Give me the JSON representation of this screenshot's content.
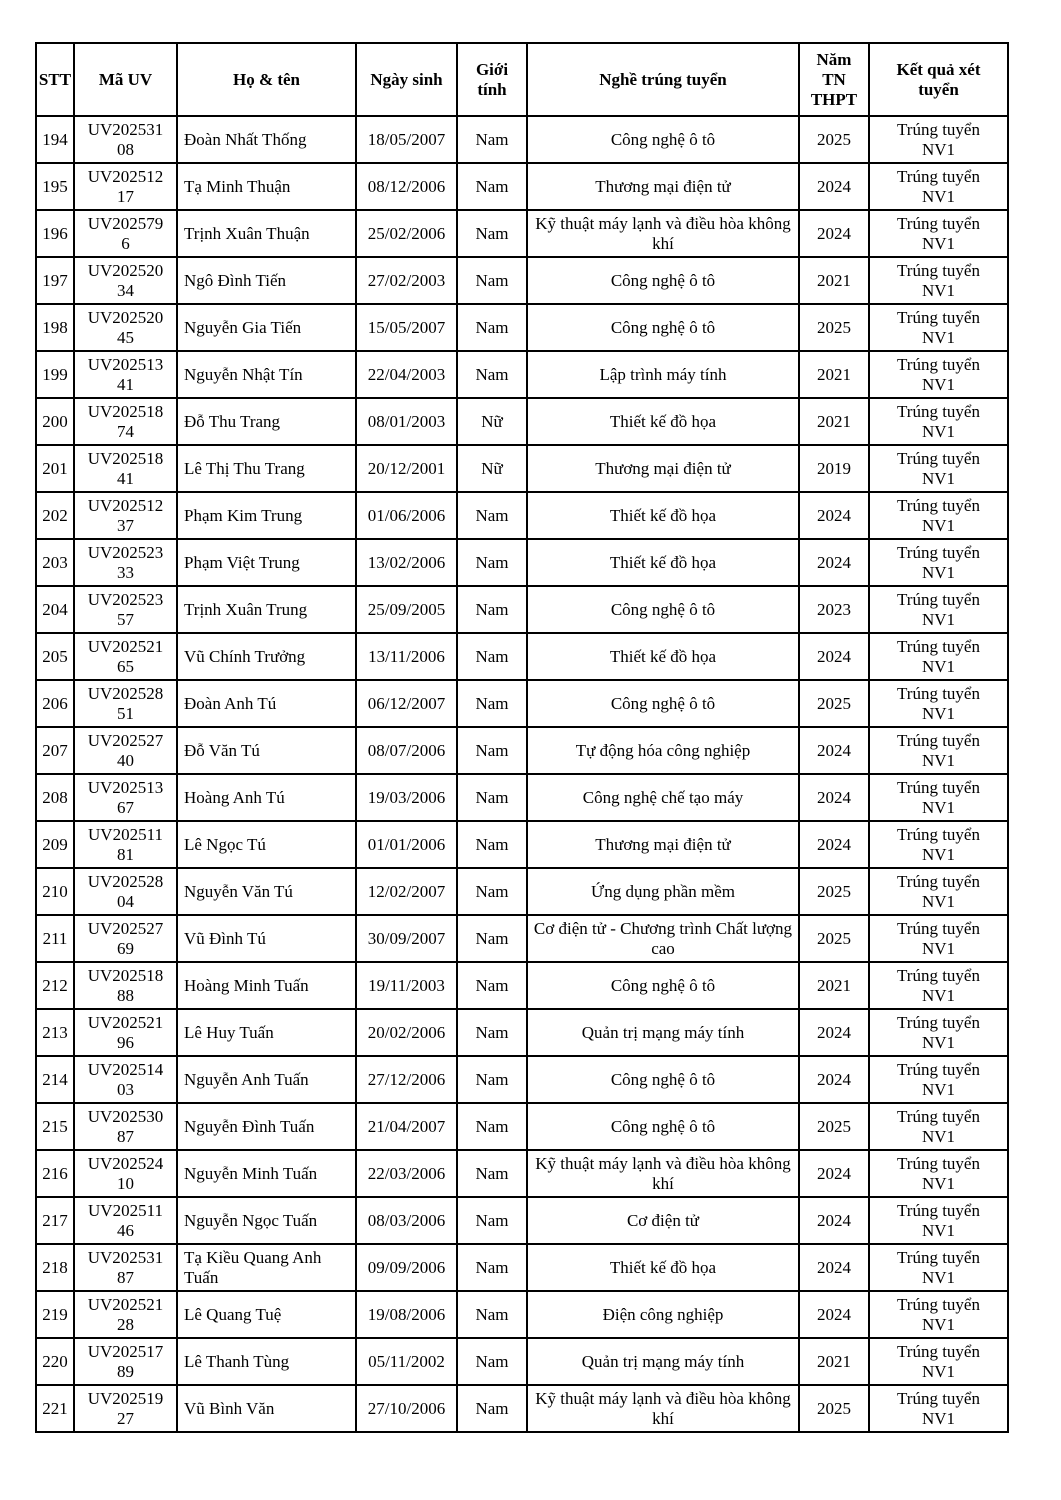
{
  "table": {
    "columns": [
      {
        "key": "stt",
        "label": "STT"
      },
      {
        "key": "ma_uv",
        "label": "Mã UV"
      },
      {
        "key": "ho_ten",
        "label": "Họ & tên"
      },
      {
        "key": "ngay_sinh",
        "label": "Ngày sinh"
      },
      {
        "key": "gioi_tinh",
        "label": "Giới tính"
      },
      {
        "key": "nghe",
        "label": "Nghề trúng tuyển"
      },
      {
        "key": "nam_tn",
        "label": "Năm TN THPT"
      },
      {
        "key": "ket_qua",
        "label": "Kết quả xét tuyển"
      }
    ],
    "rows": [
      [
        "194",
        "UV20253108",
        "Đoàn Nhất Thống",
        "18/05/2007",
        "Nam",
        "Công nghệ ô tô",
        "2025",
        "Trúng tuyển NV1"
      ],
      [
        "195",
        "UV20251217",
        "Tạ Minh Thuận",
        "08/12/2006",
        "Nam",
        "Thương mại điện tử",
        "2024",
        "Trúng tuyển NV1"
      ],
      [
        "196",
        "UV2025796",
        "Trịnh Xuân Thuận",
        "25/02/2006",
        "Nam",
        "Kỹ thuật máy lạnh và điều hòa không khí",
        "2024",
        "Trúng tuyển NV1"
      ],
      [
        "197",
        "UV20252034",
        "Ngô Đình Tiến",
        "27/02/2003",
        "Nam",
        "Công nghệ ô tô",
        "2021",
        "Trúng tuyển NV1"
      ],
      [
        "198",
        "UV20252045",
        "Nguyễn Gia Tiến",
        "15/05/2007",
        "Nam",
        "Công nghệ ô tô",
        "2025",
        "Trúng tuyển NV1"
      ],
      [
        "199",
        "UV20251341",
        "Nguyễn Nhật Tín",
        "22/04/2003",
        "Nam",
        "Lập trình máy tính",
        "2021",
        "Trúng tuyển NV1"
      ],
      [
        "200",
        "UV20251874",
        "Đỗ Thu Trang",
        "08/01/2003",
        "Nữ",
        "Thiết kế đồ họa",
        "2021",
        "Trúng tuyển NV1"
      ],
      [
        "201",
        "UV20251841",
        "Lê Thị Thu Trang",
        "20/12/2001",
        "Nữ",
        "Thương mại điện tử",
        "2019",
        "Trúng tuyển NV1"
      ],
      [
        "202",
        "UV20251237",
        "Phạm Kim Trung",
        "01/06/2006",
        "Nam",
        "Thiết kế đồ họa",
        "2024",
        "Trúng tuyển NV1"
      ],
      [
        "203",
        "UV20252333",
        "Phạm Việt Trung",
        "13/02/2006",
        "Nam",
        "Thiết kế đồ họa",
        "2024",
        "Trúng tuyển NV1"
      ],
      [
        "204",
        "UV20252357",
        "Trịnh Xuân Trung",
        "25/09/2005",
        "Nam",
        "Công nghệ ô tô",
        "2023",
        "Trúng tuyển NV1"
      ],
      [
        "205",
        "UV20252165",
        "Vũ Chính Trưởng",
        "13/11/2006",
        "Nam",
        "Thiết kế đồ họa",
        "2024",
        "Trúng tuyển NV1"
      ],
      [
        "206",
        "UV20252851",
        "Đoàn Anh Tú",
        "06/12/2007",
        "Nam",
        "Công nghệ ô tô",
        "2025",
        "Trúng tuyển NV1"
      ],
      [
        "207",
        "UV20252740",
        "Đỗ Văn Tú",
        "08/07/2006",
        "Nam",
        "Tự động hóa công nghiệp",
        "2024",
        "Trúng tuyển NV1"
      ],
      [
        "208",
        "UV20251367",
        "Hoàng Anh Tú",
        "19/03/2006",
        "Nam",
        "Công nghệ chế tạo máy",
        "2024",
        "Trúng tuyển NV1"
      ],
      [
        "209",
        "UV20251181",
        "Lê Ngọc Tú",
        "01/01/2006",
        "Nam",
        "Thương mại điện tử",
        "2024",
        "Trúng tuyển NV1"
      ],
      [
        "210",
        "UV20252804",
        "Nguyễn Văn Tú",
        "12/02/2007",
        "Nam",
        "Ứng dụng phần mềm",
        "2025",
        "Trúng tuyển NV1"
      ],
      [
        "211",
        "UV20252769",
        "Vũ Đình Tú",
        "30/09/2007",
        "Nam",
        "Cơ điện tử - Chương trình Chất lượng cao",
        "2025",
        "Trúng tuyển NV1"
      ],
      [
        "212",
        "UV20251888",
        "Hoàng Minh Tuấn",
        "19/11/2003",
        "Nam",
        "Công nghệ ô tô",
        "2021",
        "Trúng tuyển NV1"
      ],
      [
        "213",
        "UV20252196",
        "Lê Huy Tuấn",
        "20/02/2006",
        "Nam",
        "Quản trị mạng máy tính",
        "2024",
        "Trúng tuyển NV1"
      ],
      [
        "214",
        "UV20251403",
        "Nguyễn Anh Tuấn",
        "27/12/2006",
        "Nam",
        "Công nghệ ô tô",
        "2024",
        "Trúng tuyển NV1"
      ],
      [
        "215",
        "UV20253087",
        "Nguyễn Đình Tuấn",
        "21/04/2007",
        "Nam",
        "Công nghệ ô tô",
        "2025",
        "Trúng tuyển NV1"
      ],
      [
        "216",
        "UV20252410",
        "Nguyễn Minh Tuấn",
        "22/03/2006",
        "Nam",
        "Kỹ thuật máy lạnh và điều hòa không khí",
        "2024",
        "Trúng tuyển NV1"
      ],
      [
        "217",
        "UV20251146",
        "Nguyễn Ngọc Tuấn",
        "08/03/2006",
        "Nam",
        "Cơ điện tử",
        "2024",
        "Trúng tuyển NV1"
      ],
      [
        "218",
        "UV20253187",
        "Tạ Kiều Quang Anh Tuấn",
        "09/09/2006",
        "Nam",
        "Thiết kế đồ họa",
        "2024",
        "Trúng tuyển NV1"
      ],
      [
        "219",
        "UV20252128",
        "Lê Quang Tuệ",
        "19/08/2006",
        "Nam",
        "Điện công nghiệp",
        "2024",
        "Trúng tuyển NV1"
      ],
      [
        "220",
        "UV20251789",
        "Lê Thanh Tùng",
        "05/11/2002",
        "Nam",
        "Quản trị mạng máy tính",
        "2021",
        "Trúng tuyển NV1"
      ],
      [
        "221",
        "UV20251927",
        "Vũ Bình Văn",
        "27/10/2006",
        "Nam",
        "Kỹ thuật máy lạnh và điều hòa không khí",
        "2025",
        "Trúng tuyển NV1"
      ]
    ]
  }
}
